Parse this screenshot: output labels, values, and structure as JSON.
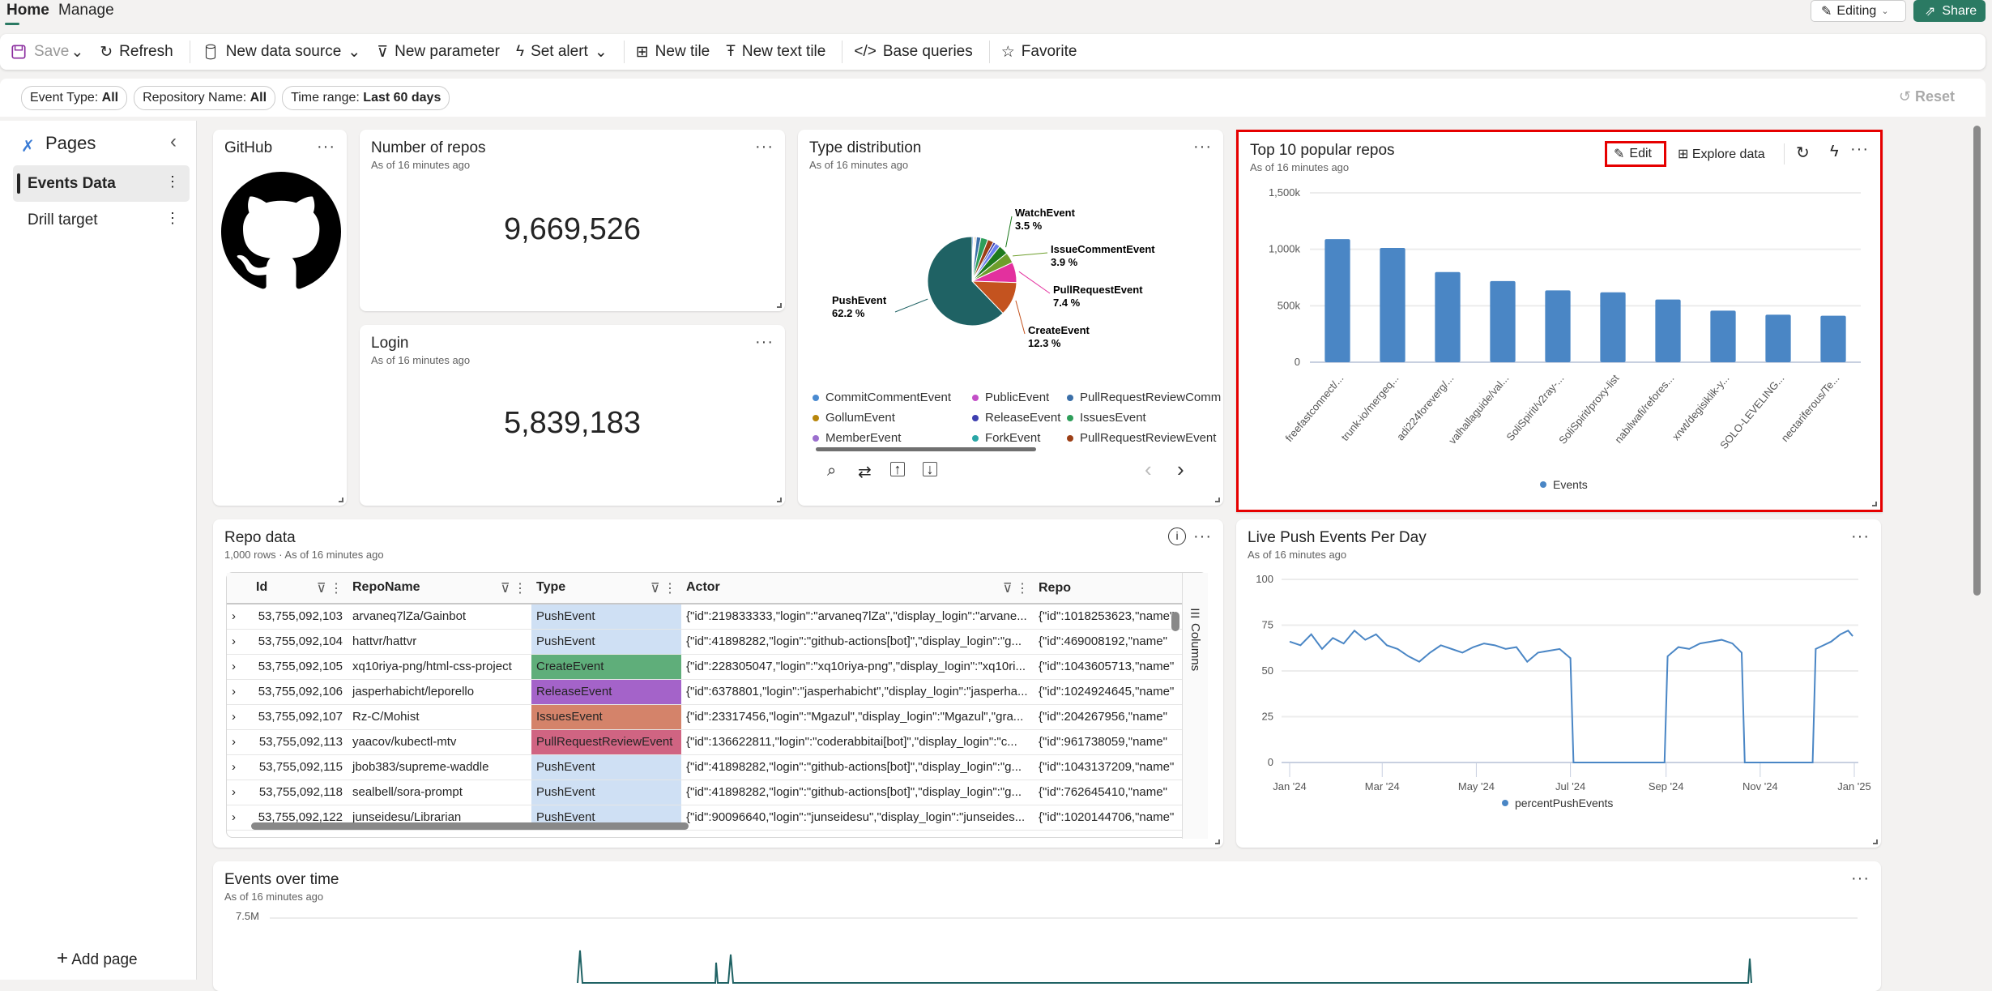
{
  "tabs": [
    {
      "label": "Home",
      "active": true
    },
    {
      "label": "Manage",
      "active": false
    }
  ],
  "mode": {
    "label": "Editing"
  },
  "share": {
    "label": "Share",
    "color": "#2b7a63"
  },
  "toolbar": {
    "save": "Save",
    "refresh": "Refresh",
    "new_data_source": "New data source",
    "new_parameter": "New parameter",
    "set_alert": "Set alert",
    "new_tile": "New tile",
    "new_text_tile": "New text tile",
    "base_queries": "Base queries",
    "favorite": "Favorite"
  },
  "filters": [
    {
      "label": "Event Type:",
      "value": "All"
    },
    {
      "label": "Repository Name:",
      "value": "All"
    },
    {
      "label": "Time range:",
      "value": "Last 60 days"
    }
  ],
  "reset": "Reset",
  "sidebar": {
    "title": "Pages",
    "items": [
      {
        "label": "Events Data",
        "active": true
      },
      {
        "label": "Drill target",
        "active": false
      }
    ],
    "add_page": "Add page"
  },
  "tiles": {
    "github": {
      "title": "GitHub"
    },
    "repos": {
      "title": "Number of repos",
      "subtitle": "As of 16 minutes ago",
      "value": "9,669,526"
    },
    "login": {
      "title": "Login",
      "subtitle": "As of 16 minutes ago",
      "value": "5,839,183"
    },
    "type": {
      "title": "Type distribution",
      "subtitle": "As of 16 minutes ago"
    },
    "top": {
      "title": "Top 10 popular repos",
      "subtitle": "As of 16 minutes ago",
      "edit": "Edit",
      "explore": "Explore data",
      "highlight_color": "#e60000"
    },
    "repo": {
      "title": "Repo data",
      "subtitle": "1,000 rows · As of 16 minutes ago",
      "columns_label": "Columns"
    },
    "push": {
      "title": "Live Push Events Per Day",
      "subtitle": "As of 16 minutes ago"
    },
    "events": {
      "title": "Events over time",
      "subtitle": "As of 16 minutes ago",
      "y_tick": "7.5M"
    }
  },
  "table": {
    "headers": [
      "Id",
      "RepoName",
      "Type",
      "Actor",
      "Repo"
    ],
    "rows": [
      {
        "id": "53,755,092,103",
        "repo": "arvaneq7lZa/Gainbot",
        "type": "PushEvent",
        "actor": "{\"id\":219833333,\"login\":\"arvaneq7lZa\",\"display_login\":\"arvane...",
        "repojson": "{\"id\":1018253623,\"name\""
      },
      {
        "id": "53,755,092,104",
        "repo": "hattvr/hattvr",
        "type": "PushEvent",
        "actor": "{\"id\":41898282,\"login\":\"github-actions[bot]\",\"display_login\":\"g...",
        "repojson": "{\"id\":469008192,\"name\""
      },
      {
        "id": "53,755,092,105",
        "repo": "xq10riya-png/html-css-project",
        "type": "CreateEvent",
        "actor": "{\"id\":228305047,\"login\":\"xq10riya-png\",\"display_login\":\"xq10ri...",
        "repojson": "{\"id\":1043605713,\"name\""
      },
      {
        "id": "53,755,092,106",
        "repo": "jasperhabicht/leporello",
        "type": "ReleaseEvent",
        "actor": "{\"id\":6378801,\"login\":\"jasperhabicht\",\"display_login\":\"jasperha...",
        "repojson": "{\"id\":1024924645,\"name\""
      },
      {
        "id": "53,755,092,107",
        "repo": "Rz-C/Mohist",
        "type": "IssuesEvent",
        "actor": "{\"id\":23317456,\"login\":\"Mgazul\",\"display_login\":\"Mgazul\",\"gra...",
        "repojson": "{\"id\":204267956,\"name\""
      },
      {
        "id": "53,755,092,113",
        "repo": "yaacov/kubectl-mtv",
        "type": "PullRequestReviewEvent",
        "actor": "{\"id\":136622811,\"login\":\"coderabbitai[bot]\",\"display_login\":\"c...",
        "repojson": "{\"id\":961738059,\"name\""
      },
      {
        "id": "53,755,092,115",
        "repo": "jbob383/supreme-waddle",
        "type": "PushEvent",
        "actor": "{\"id\":41898282,\"login\":\"github-actions[bot]\",\"display_login\":\"g...",
        "repojson": "{\"id\":1043137209,\"name\""
      },
      {
        "id": "53,755,092,118",
        "repo": "sealbell/sora-prompt",
        "type": "PushEvent",
        "actor": "{\"id\":41898282,\"login\":\"github-actions[bot]\",\"display_login\":\"g...",
        "repojson": "{\"id\":762645410,\"name\""
      },
      {
        "id": "53,755,092,122",
        "repo": "junseidesu/Librarian",
        "type": "PushEvent",
        "actor": "{\"id\":90096640,\"login\":\"junseidesu\",\"display_login\":\"junseides...",
        "repojson": "{\"id\":1020144706,\"name\""
      }
    ],
    "type_colors": {
      "PushEvent": "#cfe0f4",
      "CreateEvent": "#5fae7a",
      "ReleaseEvent": "#a463c9",
      "IssuesEvent": "#d4836a",
      "PullRequestReviewEvent": "#d06482"
    }
  },
  "chart_data": [
    {
      "type": "pie",
      "title": "Type distribution",
      "slices": [
        {
          "name": "CommitCommentEvent",
          "value": 0.5,
          "color": "#4a8ad1"
        },
        {
          "name": "PublicEvent",
          "value": 0.3,
          "color": "#c34fc7"
        },
        {
          "name": "GollumEvent",
          "value": 0.4,
          "color": "#b8860b"
        },
        {
          "name": "MemberEvent",
          "value": 0.4,
          "color": "#9b6fce"
        },
        {
          "name": "PullRequestReviewCommentEvent",
          "value": 1.6,
          "color": "#3b6fa8"
        },
        {
          "name": "IssuesEvent",
          "value": 2.6,
          "color": "#2e9e5a"
        },
        {
          "name": "PullRequestReviewEvent",
          "value": 2.2,
          "color": "#9c3f16"
        },
        {
          "name": "ReleaseEvent",
          "value": 0.9,
          "color": "#3e3fb0"
        },
        {
          "name": "ForkEvent",
          "value": 1.8,
          "color": "#6b7ff0"
        },
        {
          "name": "WatchEvent",
          "value": 3.5,
          "color": "#1e7a1e",
          "label": "3.5 %"
        },
        {
          "name": "IssueCommentEvent",
          "value": 3.9,
          "color": "#6d9e2b",
          "label": "3.9 %"
        },
        {
          "name": "PullRequestEvent",
          "value": 7.4,
          "color": "#e3309e",
          "label": "7.4 %"
        },
        {
          "name": "CreateEvent",
          "value": 12.3,
          "color": "#c4531f",
          "label": "12.3 %"
        },
        {
          "name": "PushEvent",
          "value": 62.2,
          "color": "#1f6264",
          "label": "62.2 %"
        }
      ],
      "legend": [
        {
          "name": "CommitCommentEvent",
          "color": "#4a8ad1"
        },
        {
          "name": "PublicEvent",
          "color": "#c34fc7"
        },
        {
          "name": "PullRequestReviewComm",
          "color": "#3b6fa8"
        },
        {
          "name": "GollumEvent",
          "color": "#b8860b"
        },
        {
          "name": "ReleaseEvent",
          "color": "#3e3fb0"
        },
        {
          "name": "IssuesEvent",
          "color": "#2e9e5a"
        },
        {
          "name": "MemberEvent",
          "color": "#9b6fce"
        },
        {
          "name": "ForkEvent",
          "color": "#2aa6a6"
        },
        {
          "name": "PullRequestReviewEvent",
          "color": "#9c3f16"
        }
      ]
    },
    {
      "type": "bar",
      "title": "Top 10 popular repos",
      "color": "#4a86c5",
      "categories": [
        "freefastconnect/...",
        "trunk-io/mergeq...",
        "adi224foreverg/...",
        "valhallaguide/val...",
        "SoliSpirit/v2ray-...",
        "SoliSpirit/proxy-list",
        "nabilwafi/refores...",
        "xrwt/degisiklik-y...",
        "SOLO-LEVELING...",
        "nectariferous/Te..."
      ],
      "values": [
        1090000,
        1012000,
        798000,
        719000,
        636000,
        619000,
        555000,
        457000,
        421000,
        412000
      ],
      "ylim": [
        0,
        1500000
      ],
      "yticks": [
        "0",
        "500k",
        "1,000k",
        "1,500k"
      ],
      "legend": "Events",
      "grid": true
    },
    {
      "type": "line",
      "title": "Live Push Events Per Day",
      "color": "#4a86c5",
      "series_name": "percentPushEvents",
      "ylim": [
        0,
        100
      ],
      "yticks": [
        0,
        25,
        50,
        75,
        100
      ],
      "xlim": [
        "2024-01-01",
        "2025-01-01"
      ],
      "xticks": [
        "Jan '24",
        "Mar '24",
        "May '24",
        "Jul '24",
        "Sep '24",
        "Nov '24",
        "Jan '25"
      ],
      "xtick_dates": [
        "2024-01-01",
        "2024-03-01",
        "2024-05-01",
        "2024-07-01",
        "2024-09-01",
        "2024-11-01",
        "2025-01-01"
      ],
      "points": [
        [
          "2024-01-01",
          66
        ],
        [
          "2024-01-08",
          64
        ],
        [
          "2024-01-15",
          70
        ],
        [
          "2024-01-22",
          62
        ],
        [
          "2024-01-29",
          68
        ],
        [
          "2024-02-05",
          65
        ],
        [
          "2024-02-12",
          72
        ],
        [
          "2024-02-19",
          67
        ],
        [
          "2024-02-26",
          70
        ],
        [
          "2024-03-04",
          64
        ],
        [
          "2024-03-11",
          62
        ],
        [
          "2024-03-18",
          58
        ],
        [
          "2024-03-25",
          55
        ],
        [
          "2024-04-01",
          60
        ],
        [
          "2024-04-08",
          64
        ],
        [
          "2024-04-15",
          62
        ],
        [
          "2024-04-22",
          60
        ],
        [
          "2024-04-29",
          63
        ],
        [
          "2024-05-06",
          65
        ],
        [
          "2024-05-13",
          64
        ],
        [
          "2024-05-20",
          62
        ],
        [
          "2024-05-27",
          63
        ],
        [
          "2024-06-03",
          55
        ],
        [
          "2024-06-10",
          60
        ],
        [
          "2024-06-17",
          61
        ],
        [
          "2024-06-24",
          62
        ],
        [
          "2024-07-01",
          57
        ],
        [
          "2024-07-03",
          0
        ],
        [
          "2024-08-31",
          0
        ],
        [
          "2024-09-02",
          58
        ],
        [
          "2024-09-09",
          63
        ],
        [
          "2024-09-16",
          62
        ],
        [
          "2024-09-23",
          65
        ],
        [
          "2024-09-30",
          66
        ],
        [
          "2024-10-07",
          67
        ],
        [
          "2024-10-14",
          65
        ],
        [
          "2024-10-20",
          60
        ],
        [
          "2024-10-22",
          0
        ],
        [
          "2024-12-05",
          0
        ],
        [
          "2024-12-07",
          62
        ],
        [
          "2024-12-12",
          64
        ],
        [
          "2024-12-17",
          66
        ],
        [
          "2024-12-23",
          70
        ],
        [
          "2024-12-28",
          72
        ],
        [
          "2024-12-31",
          69
        ]
      ],
      "grid": true
    }
  ]
}
